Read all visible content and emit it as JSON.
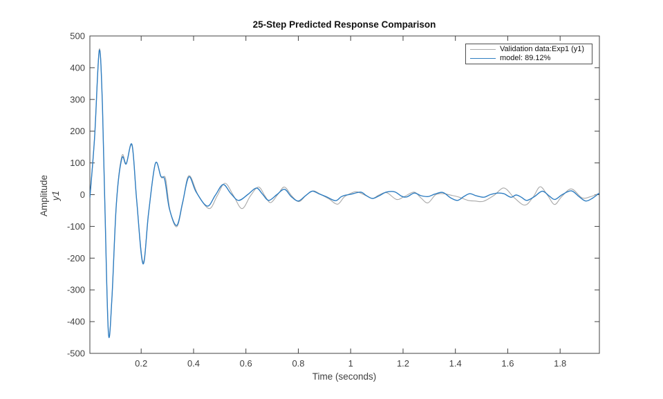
{
  "figure": {
    "title": "25-Step Predicted Response Comparison",
    "xlabel": "Time (seconds)",
    "ylabel_line1": "Amplitude",
    "ylabel_line2": "y1"
  },
  "legend": {
    "position": "top-right",
    "items": [
      {
        "label": "Validation data:Exp1 (y1)",
        "color": "#a8a8a8"
      },
      {
        "label": "model: 89.12%",
        "color": "#2e7dc1"
      }
    ]
  },
  "chart_data": {
    "type": "line",
    "title": "25-Step Predicted Response Comparison",
    "xlabel": "Time (seconds)",
    "ylabel": "Amplitude y1",
    "xlim": [
      0.004,
      1.95
    ],
    "ylim": [
      -500,
      500
    ],
    "xticks": [
      0.2,
      0.4,
      0.6,
      0.8,
      1.0,
      1.2,
      1.4,
      1.6,
      1.8
    ],
    "xtick_labels": [
      "0.2",
      "0.4",
      "0.6",
      "0.8",
      "1",
      "1.2",
      "1.4",
      "1.6",
      "1.8"
    ],
    "yticks": [
      -500,
      -400,
      -300,
      -200,
      -100,
      0,
      100,
      200,
      300,
      400,
      500
    ],
    "ytick_labels": [
      "-500",
      "-400",
      "-300",
      "-200",
      "-100",
      "0",
      "100",
      "200",
      "300",
      "400",
      "500"
    ],
    "grid": false,
    "legend_position": "top-right",
    "series": [
      {
        "name": "Validation data:Exp1 (y1)",
        "color": "#a8a8a8",
        "width": 1.1,
        "points": [
          [
            0.004,
            -10
          ],
          [
            0.022,
            180
          ],
          [
            0.04,
            458
          ],
          [
            0.052,
            280
          ],
          [
            0.062,
            -60
          ],
          [
            0.075,
            -434
          ],
          [
            0.088,
            -330
          ],
          [
            0.105,
            -30
          ],
          [
            0.126,
            121
          ],
          [
            0.143,
            99
          ],
          [
            0.165,
            154
          ],
          [
            0.183,
            -20
          ],
          [
            0.207,
            -213
          ],
          [
            0.228,
            -60
          ],
          [
            0.254,
            98
          ],
          [
            0.277,
            54
          ],
          [
            0.293,
            51
          ],
          [
            0.31,
            -50
          ],
          [
            0.336,
            -101
          ],
          [
            0.358,
            -28
          ],
          [
            0.382,
            60
          ],
          [
            0.418,
            -2
          ],
          [
            0.46,
            -44
          ],
          [
            0.49,
            -4
          ],
          [
            0.52,
            36
          ],
          [
            0.552,
            -2
          ],
          [
            0.585,
            -44
          ],
          [
            0.617,
            -4
          ],
          [
            0.648,
            24
          ],
          [
            0.672,
            -3
          ],
          [
            0.694,
            -25
          ],
          [
            0.722,
            1
          ],
          [
            0.747,
            24
          ],
          [
            0.775,
            -4
          ],
          [
            0.803,
            -22
          ],
          [
            0.832,
            0
          ],
          [
            0.858,
            12
          ],
          [
            0.885,
            1
          ],
          [
            0.918,
            -14
          ],
          [
            0.95,
            -30
          ],
          [
            0.976,
            -7
          ],
          [
            1.005,
            6
          ],
          [
            1.025,
            9
          ],
          [
            1.058,
            -3
          ],
          [
            1.084,
            -12
          ],
          [
            1.108,
            -1
          ],
          [
            1.138,
            6
          ],
          [
            1.175,
            -15
          ],
          [
            1.205,
            -6
          ],
          [
            1.242,
            8
          ],
          [
            1.268,
            -10
          ],
          [
            1.295,
            -26
          ],
          [
            1.325,
            0
          ],
          [
            1.355,
            3
          ],
          [
            1.385,
            -2
          ],
          [
            1.415,
            -8
          ],
          [
            1.448,
            -18
          ],
          [
            1.475,
            -20
          ],
          [
            1.507,
            -21
          ],
          [
            1.548,
            -2
          ],
          [
            1.586,
            21
          ],
          [
            1.625,
            -10
          ],
          [
            1.666,
            -33
          ],
          [
            1.698,
            -6
          ],
          [
            1.724,
            25
          ],
          [
            1.752,
            -2
          ],
          [
            1.779,
            -31
          ],
          [
            1.806,
            -6
          ],
          [
            1.843,
            18
          ],
          [
            1.884,
            -10
          ],
          [
            1.917,
            -6
          ],
          [
            1.948,
            4
          ]
        ]
      },
      {
        "name": "model: 89.12%",
        "color": "#2e7dc1",
        "width": 1.4,
        "points": [
          [
            0.004,
            -10
          ],
          [
            0.022,
            180
          ],
          [
            0.04,
            454
          ],
          [
            0.052,
            280
          ],
          [
            0.062,
            -60
          ],
          [
            0.075,
            -438
          ],
          [
            0.088,
            -330
          ],
          [
            0.105,
            -30
          ],
          [
            0.126,
            114
          ],
          [
            0.143,
            97
          ],
          [
            0.165,
            157
          ],
          [
            0.183,
            -20
          ],
          [
            0.207,
            -218
          ],
          [
            0.228,
            -60
          ],
          [
            0.254,
            98
          ],
          [
            0.275,
            58
          ],
          [
            0.29,
            47
          ],
          [
            0.308,
            -45
          ],
          [
            0.336,
            -97
          ],
          [
            0.358,
            -25
          ],
          [
            0.382,
            56
          ],
          [
            0.41,
            8
          ],
          [
            0.452,
            -36
          ],
          [
            0.483,
            -2
          ],
          [
            0.513,
            32
          ],
          [
            0.542,
            4
          ],
          [
            0.572,
            -18
          ],
          [
            0.608,
            1
          ],
          [
            0.64,
            21
          ],
          [
            0.663,
            2
          ],
          [
            0.687,
            -18
          ],
          [
            0.718,
            0
          ],
          [
            0.747,
            17
          ],
          [
            0.773,
            -6
          ],
          [
            0.8,
            -20
          ],
          [
            0.828,
            -3
          ],
          [
            0.853,
            11
          ],
          [
            0.878,
            3
          ],
          [
            0.908,
            -7
          ],
          [
            0.942,
            -19
          ],
          [
            0.963,
            -7
          ],
          [
            0.978,
            -2
          ],
          [
            1.0,
            1
          ],
          [
            1.038,
            8
          ],
          [
            1.06,
            -3
          ],
          [
            1.084,
            -12
          ],
          [
            1.11,
            -3
          ],
          [
            1.136,
            8
          ],
          [
            1.168,
            9
          ],
          [
            1.195,
            -5
          ],
          [
            1.215,
            -7
          ],
          [
            1.243,
            5
          ],
          [
            1.268,
            -3
          ],
          [
            1.295,
            -6
          ],
          [
            1.322,
            2
          ],
          [
            1.352,
            7
          ],
          [
            1.382,
            -10
          ],
          [
            1.408,
            -18
          ],
          [
            1.432,
            -6
          ],
          [
            1.455,
            3
          ],
          [
            1.478,
            -3
          ],
          [
            1.508,
            -8
          ],
          [
            1.533,
            0
          ],
          [
            1.562,
            5
          ],
          [
            1.585,
            3
          ],
          [
            1.612,
            -8
          ],
          [
            1.632,
            -1
          ],
          [
            1.652,
            -8
          ],
          [
            1.673,
            -18
          ],
          [
            1.702,
            -6
          ],
          [
            1.732,
            11
          ],
          [
            1.758,
            -4
          ],
          [
            1.78,
            -15
          ],
          [
            1.808,
            0
          ],
          [
            1.843,
            12
          ],
          [
            1.872,
            -6
          ],
          [
            1.898,
            -20
          ],
          [
            1.924,
            -11
          ],
          [
            1.948,
            4
          ]
        ]
      }
    ]
  }
}
